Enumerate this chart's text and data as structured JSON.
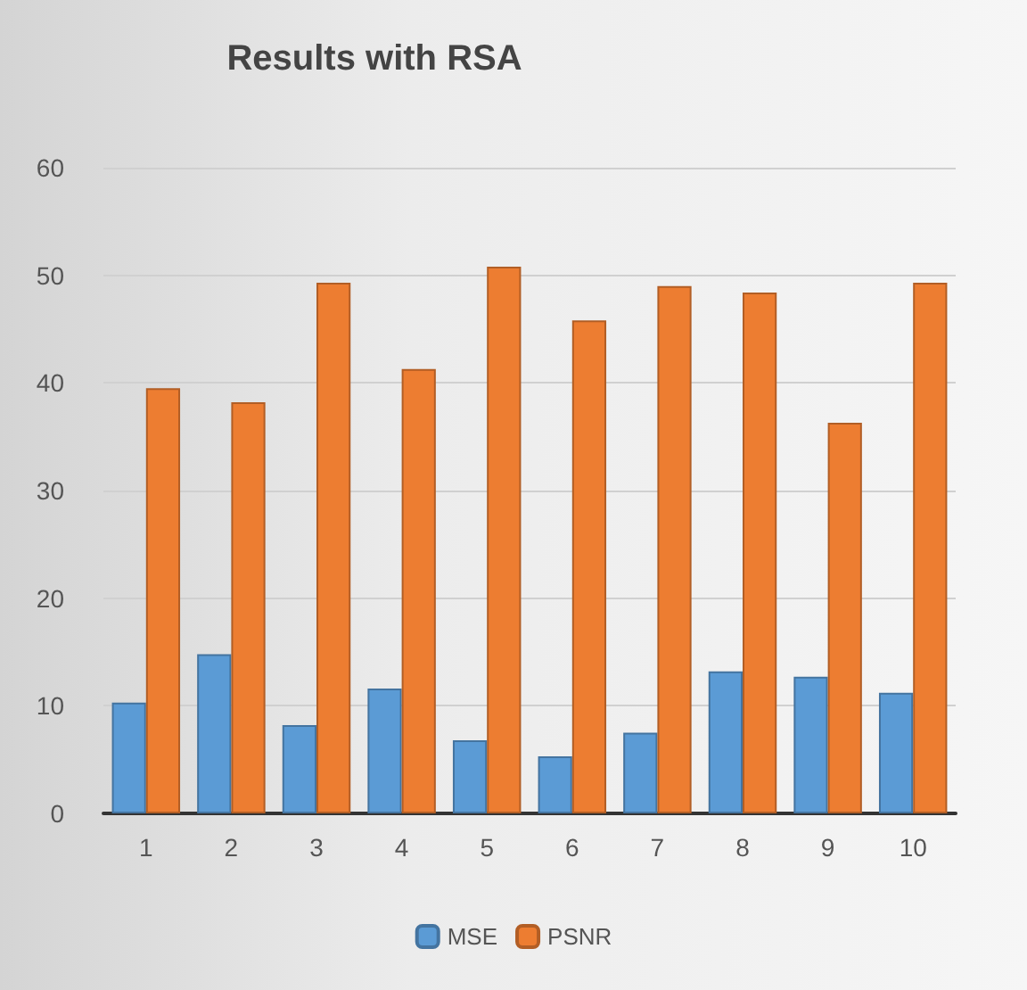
{
  "chart_data": {
    "type": "bar",
    "title": "Results with RSA",
    "categories": [
      "1",
      "2",
      "3",
      "4",
      "5",
      "6",
      "7",
      "8",
      "9",
      "10"
    ],
    "series": [
      {
        "name": "MSE",
        "color": "#5b9bd5",
        "values": [
          10.3,
          14.8,
          8.2,
          11.6,
          6.8,
          5.3,
          7.5,
          13.2,
          12.7,
          11.2
        ]
      },
      {
        "name": "PSNR",
        "color": "#ed7d31",
        "values": [
          39.5,
          38.2,
          49.3,
          41.3,
          50.8,
          45.8,
          49.0,
          48.4,
          36.3,
          49.3
        ]
      }
    ],
    "ylim": [
      0,
      60
    ],
    "yticks": [
      0,
      10,
      20,
      30,
      40,
      50,
      60
    ],
    "grid": "y",
    "legend": "bottom"
  }
}
